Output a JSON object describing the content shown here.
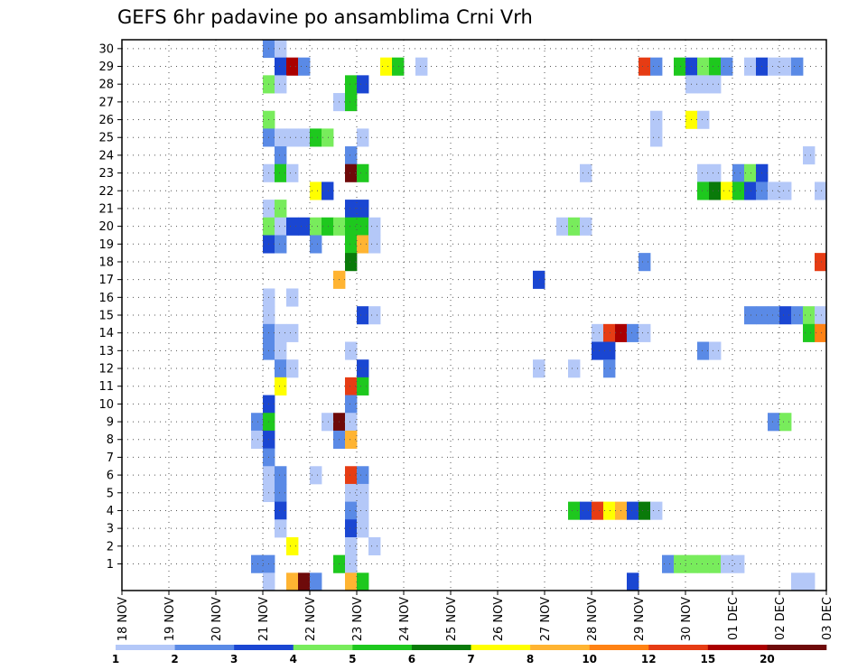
{
  "chart_data": {
    "type": "heatmap",
    "title": "GEFS 6hr padavine po ansamblima Crni Vrh",
    "xlabel": "",
    "ylabel": "",
    "y_ticks": [
      "1",
      "2",
      "3",
      "4",
      "5",
      "6",
      "7",
      "8",
      "9",
      "10",
      "11",
      "12",
      "13",
      "14",
      "15",
      "16",
      "17",
      "18",
      "19",
      "20",
      "21",
      "22",
      "23",
      "24",
      "25",
      "26",
      "27",
      "28",
      "29",
      "30"
    ],
    "x_ticks": [
      "18 NOV",
      "19 NOV",
      "20 NOV",
      "21 NOV",
      "22 NOV",
      "23 NOV",
      "24 NOV",
      "25 NOV",
      "26 NOV",
      "27 NOV",
      "28 NOV",
      "29 NOV",
      "30 NOV",
      "01 DEC",
      "02 DEC",
      "03 DEC"
    ],
    "x_range": [
      "18 NOV 00h",
      "03 DEC 00h"
    ],
    "time_step_hours": 6,
    "grid": true,
    "colorbar": {
      "labels": [
        "1",
        "2",
        "3",
        "4",
        "5",
        "6",
        "7",
        "8",
        "10",
        "12",
        "15",
        "20"
      ],
      "colors": [
        "#b4c8f8",
        "#5a8ae6",
        "#1a46d2",
        "#78ec5c",
        "#1ec81e",
        "#0a7a0a",
        "#ffff00",
        "#ffb432",
        "#ff8214",
        "#e63c14",
        "#aa0000",
        "#6e0a0a"
      ]
    },
    "cells_format": "[ensemble_member, 6h_step_index_from_18NOV00, class_index]",
    "cells": [
      [
        30,
        12,
        1
      ],
      [
        30,
        13,
        0
      ],
      [
        29,
        13,
        2
      ],
      [
        29,
        14,
        10
      ],
      [
        29,
        15,
        1
      ],
      [
        29,
        22,
        6
      ],
      [
        29,
        23,
        4
      ],
      [
        29,
        25,
        0
      ],
      [
        28,
        12,
        3
      ],
      [
        28,
        13,
        0
      ],
      [
        28,
        19,
        4
      ],
      [
        28,
        20,
        2
      ],
      [
        27,
        18,
        0
      ],
      [
        27,
        19,
        4
      ],
      [
        26,
        12,
        3
      ],
      [
        25,
        12,
        1
      ],
      [
        25,
        13,
        0
      ],
      [
        25,
        14,
        0
      ],
      [
        25,
        15,
        0
      ],
      [
        25,
        16,
        4
      ],
      [
        25,
        17,
        3
      ],
      [
        25,
        20,
        0
      ],
      [
        24,
        13,
        1
      ],
      [
        24,
        19,
        1
      ],
      [
        23,
        12,
        0
      ],
      [
        23,
        13,
        4
      ],
      [
        23,
        14,
        0
      ],
      [
        23,
        19,
        11
      ],
      [
        23,
        20,
        4
      ],
      [
        22,
        16,
        6
      ],
      [
        22,
        17,
        2
      ],
      [
        21,
        12,
        0
      ],
      [
        21,
        13,
        3
      ],
      [
        21,
        19,
        2
      ],
      [
        21,
        20,
        2
      ],
      [
        20,
        12,
        3
      ],
      [
        20,
        13,
        0
      ],
      [
        20,
        14,
        2
      ],
      [
        20,
        15,
        2
      ],
      [
        20,
        16,
        3
      ],
      [
        20,
        17,
        4
      ],
      [
        20,
        18,
        3
      ],
      [
        20,
        19,
        4
      ],
      [
        20,
        20,
        4
      ],
      [
        20,
        21,
        0
      ],
      [
        19,
        12,
        2
      ],
      [
        19,
        13,
        1
      ],
      [
        19,
        16,
        1
      ],
      [
        19,
        19,
        4
      ],
      [
        19,
        20,
        7
      ],
      [
        19,
        21,
        0
      ],
      [
        18,
        19,
        5
      ],
      [
        17,
        18,
        7
      ],
      [
        16,
        12,
        0
      ],
      [
        16,
        14,
        0
      ],
      [
        15,
        12,
        0
      ],
      [
        15,
        20,
        2
      ],
      [
        15,
        21,
        0
      ],
      [
        14,
        12,
        1
      ],
      [
        14,
        13,
        0
      ],
      [
        14,
        14,
        0
      ],
      [
        13,
        12,
        1
      ],
      [
        13,
        13,
        0
      ],
      [
        13,
        19,
        0
      ],
      [
        12,
        13,
        1
      ],
      [
        12,
        14,
        0
      ],
      [
        12,
        20,
        2
      ],
      [
        11,
        13,
        6
      ],
      [
        11,
        19,
        9
      ],
      [
        11,
        20,
        4
      ],
      [
        10,
        12,
        2
      ],
      [
        10,
        19,
        1
      ],
      [
        9,
        11,
        1
      ],
      [
        9,
        12,
        4
      ],
      [
        9,
        17,
        0
      ],
      [
        9,
        18,
        11
      ],
      [
        9,
        19,
        0
      ],
      [
        8,
        11,
        0
      ],
      [
        8,
        12,
        2
      ],
      [
        8,
        18,
        1
      ],
      [
        8,
        19,
        7
      ],
      [
        7,
        12,
        1
      ],
      [
        6,
        12,
        0
      ],
      [
        6,
        13,
        1
      ],
      [
        6,
        16,
        0
      ],
      [
        6,
        19,
        9
      ],
      [
        6,
        20,
        1
      ],
      [
        5,
        12,
        0
      ],
      [
        5,
        13,
        1
      ],
      [
        5,
        19,
        0
      ],
      [
        5,
        20,
        0
      ],
      [
        4,
        13,
        2
      ],
      [
        4,
        19,
        1
      ],
      [
        4,
        20,
        0
      ],
      [
        3,
        13,
        0
      ],
      [
        3,
        19,
        2
      ],
      [
        3,
        20,
        0
      ],
      [
        2,
        14,
        6
      ],
      [
        2,
        19,
        0
      ],
      [
        2,
        21,
        0
      ],
      [
        1,
        11,
        1
      ],
      [
        1,
        12,
        1
      ],
      [
        1,
        18,
        4
      ],
      [
        1,
        19,
        0
      ],
      [
        0,
        12,
        0
      ],
      [
        0,
        14,
        7
      ],
      [
        0,
        15,
        11
      ],
      [
        0,
        16,
        1
      ],
      [
        0,
        19,
        7
      ],
      [
        0,
        20,
        4
      ],
      [
        29,
        44,
        9
      ],
      [
        29,
        45,
        1
      ],
      [
        29,
        47,
        4
      ],
      [
        29,
        48,
        2
      ],
      [
        29,
        49,
        3
      ],
      [
        29,
        50,
        4
      ],
      [
        29,
        51,
        1
      ],
      [
        29,
        53,
        0
      ],
      [
        29,
        54,
        2
      ],
      [
        29,
        55,
        0
      ],
      [
        29,
        56,
        0
      ],
      [
        29,
        57,
        1
      ],
      [
        28,
        48,
        0
      ],
      [
        28,
        49,
        0
      ],
      [
        28,
        50,
        0
      ],
      [
        26,
        45,
        0
      ],
      [
        26,
        48,
        6
      ],
      [
        26,
        49,
        0
      ],
      [
        25,
        45,
        0
      ],
      [
        24,
        58,
        0
      ],
      [
        23,
        39,
        0
      ],
      [
        23,
        49,
        0
      ],
      [
        23,
        50,
        0
      ],
      [
        23,
        52,
        1
      ],
      [
        23,
        53,
        3
      ],
      [
        23,
        54,
        2
      ],
      [
        22,
        49,
        4
      ],
      [
        22,
        50,
        5
      ],
      [
        22,
        51,
        6
      ],
      [
        22,
        52,
        4
      ],
      [
        22,
        53,
        2
      ],
      [
        22,
        54,
        1
      ],
      [
        22,
        55,
        0
      ],
      [
        22,
        56,
        0
      ],
      [
        22,
        59,
        0
      ],
      [
        20,
        37,
        0
      ],
      [
        20,
        38,
        3
      ],
      [
        20,
        39,
        0
      ],
      [
        18,
        44,
        1
      ],
      [
        18,
        59,
        9
      ],
      [
        17,
        35,
        2
      ],
      [
        15,
        53,
        1
      ],
      [
        15,
        54,
        1
      ],
      [
        15,
        55,
        1
      ],
      [
        15,
        56,
        2
      ],
      [
        15,
        57,
        1
      ],
      [
        15,
        58,
        3
      ],
      [
        15,
        59,
        0
      ],
      [
        14,
        40,
        0
      ],
      [
        14,
        41,
        9
      ],
      [
        14,
        42,
        10
      ],
      [
        14,
        43,
        1
      ],
      [
        14,
        44,
        0
      ],
      [
        14,
        58,
        4
      ],
      [
        14,
        59,
        8
      ],
      [
        13,
        40,
        2
      ],
      [
        13,
        41,
        2
      ],
      [
        13,
        49,
        1
      ],
      [
        13,
        50,
        0
      ],
      [
        12,
        35,
        0
      ],
      [
        12,
        38,
        0
      ],
      [
        12,
        41,
        1
      ],
      [
        9,
        55,
        1
      ],
      [
        9,
        56,
        3
      ],
      [
        4,
        38,
        4
      ],
      [
        4,
        39,
        2
      ],
      [
        4,
        40,
        9
      ],
      [
        4,
        41,
        6
      ],
      [
        4,
        42,
        7
      ],
      [
        4,
        43,
        2
      ],
      [
        4,
        44,
        5
      ],
      [
        4,
        45,
        0
      ],
      [
        1,
        46,
        1
      ],
      [
        1,
        47,
        3
      ],
      [
        1,
        48,
        3
      ],
      [
        1,
        49,
        3
      ],
      [
        1,
        50,
        3
      ],
      [
        1,
        51,
        0
      ],
      [
        1,
        52,
        0
      ],
      [
        0,
        43,
        2
      ],
      [
        0,
        57,
        0
      ],
      [
        0,
        58,
        0
      ]
    ]
  }
}
